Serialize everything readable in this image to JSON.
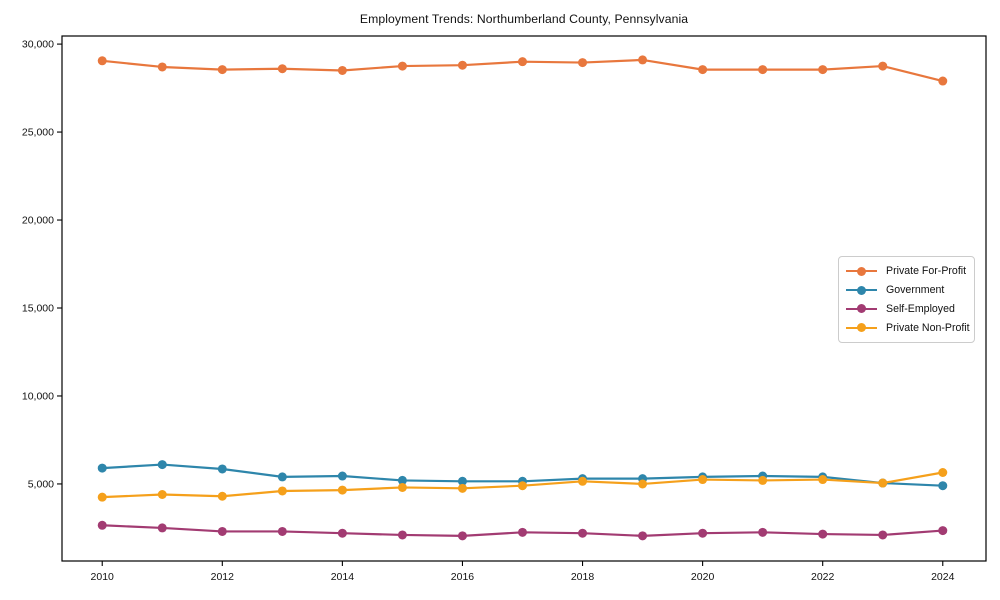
{
  "chart_data": {
    "type": "line",
    "title": "Employment Trends: Northumberland County, Pennsylvania",
    "xlabel": "",
    "ylabel": "",
    "x": [
      2010,
      2011,
      2012,
      2013,
      2014,
      2015,
      2016,
      2017,
      2018,
      2019,
      2020,
      2021,
      2022,
      2023,
      2024
    ],
    "series": [
      {
        "name": "Private For-Profit",
        "color": "#E8773D",
        "values": [
          29050,
          28700,
          28550,
          28600,
          28500,
          28750,
          28800,
          29000,
          28950,
          29100,
          28550,
          28550,
          28550,
          28750,
          27900
        ]
      },
      {
        "name": "Government",
        "color": "#2E86AB",
        "values": [
          5900,
          6100,
          5850,
          5400,
          5450,
          5200,
          5150,
          5150,
          5300,
          5300,
          5400,
          5450,
          5400,
          5050,
          4900
        ]
      },
      {
        "name": "Self-Employed",
        "color": "#A23B72",
        "values": [
          2650,
          2500,
          2300,
          2300,
          2200,
          2100,
          2050,
          2250,
          2200,
          2050,
          2200,
          2250,
          2150,
          2100,
          2350
        ]
      },
      {
        "name": "Private Non-Profit",
        "color": "#F5A01B",
        "values": [
          4250,
          4400,
          4300,
          4600,
          4650,
          4800,
          4750,
          4900,
          5150,
          5000,
          5250,
          5200,
          5250,
          5050,
          5650
        ]
      }
    ],
    "xticks": {
      "values": [
        2010,
        2012,
        2014,
        2016,
        2018,
        2020,
        2022,
        2024
      ],
      "labels": [
        "2010",
        "2012",
        "2014",
        "2016",
        "2018",
        "2020",
        "2022",
        "2024"
      ]
    },
    "yticks": {
      "values": [
        5000,
        10000,
        15000,
        20000,
        25000,
        30000
      ],
      "labels": [
        "5,000",
        "10,000",
        "15,000",
        "20,000",
        "25,000",
        "30,000"
      ]
    },
    "xlim": [
      2009.33,
      2024.72
    ],
    "ylim": [
      620,
      30460
    ],
    "grid": false,
    "legend_position": "center-right",
    "axis_color": "#000000",
    "text_color": "#111111",
    "background_color": "#ffffff"
  }
}
